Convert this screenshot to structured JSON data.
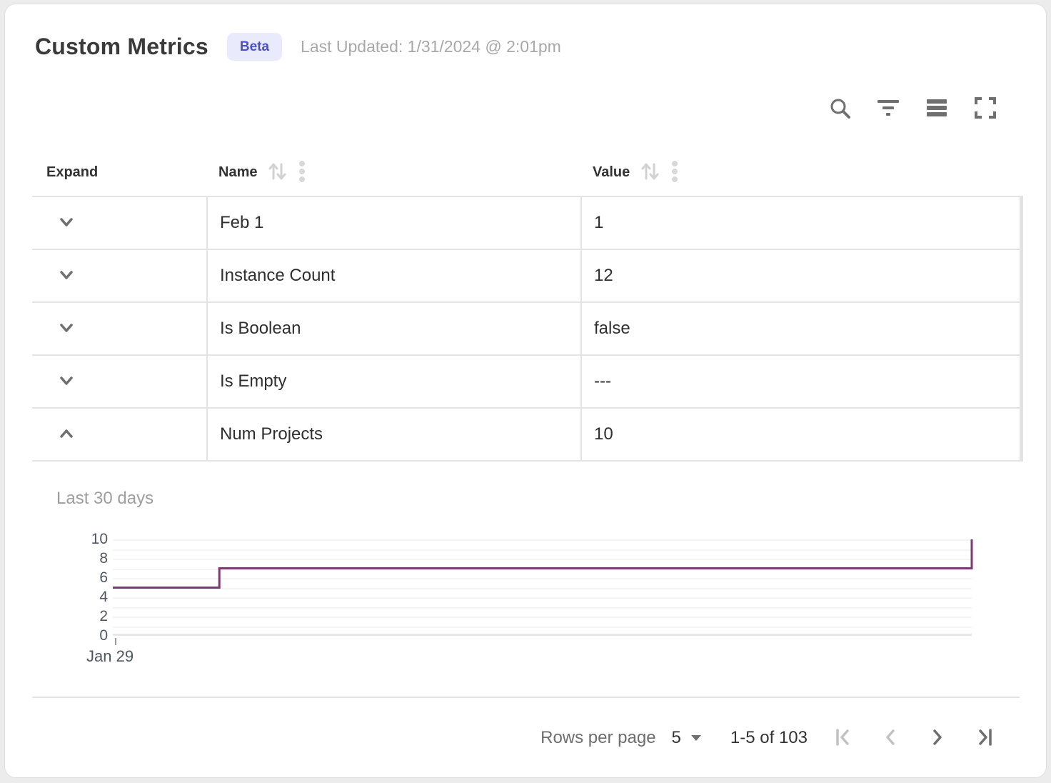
{
  "header": {
    "title": "Custom Metrics",
    "badge": "Beta",
    "last_updated": "Last Updated: 1/31/2024 @ 2:01pm"
  },
  "toolbar": {
    "icons": [
      "search",
      "filter",
      "density",
      "fullscreen"
    ]
  },
  "table": {
    "columns": [
      {
        "label": "Expand",
        "sortable": false
      },
      {
        "label": "Name",
        "sortable": true
      },
      {
        "label": "Value",
        "sortable": true
      }
    ],
    "rows": [
      {
        "name": "Feb 1",
        "value": "1",
        "expanded": false
      },
      {
        "name": "Instance Count",
        "value": "12",
        "expanded": false
      },
      {
        "name": "Is Boolean",
        "value": "false",
        "expanded": false
      },
      {
        "name": "Is Empty",
        "value": "---",
        "expanded": false
      },
      {
        "name": "Num Projects",
        "value": "10",
        "expanded": true
      }
    ]
  },
  "expanded_panel": {
    "label": "Last 30 days",
    "for_row": "Num Projects"
  },
  "chart_data": {
    "type": "line",
    "title": "Last 30 days",
    "series": [
      {
        "name": "Num Projects",
        "points": [
          {
            "x": 0,
            "y": 5
          },
          {
            "x": 0.124,
            "y": 5
          },
          {
            "x": 0.124,
            "y": 7
          },
          {
            "x": 1,
            "y": 7
          },
          {
            "x": 1,
            "y": 10
          }
        ]
      }
    ],
    "line_style": "step",
    "line_color": "#7b3a70",
    "y_ticks": [
      0,
      2,
      4,
      6,
      8,
      10
    ],
    "ylim": [
      0,
      10
    ],
    "grid": "horizontal-every-unit",
    "x_tick_labels": [
      "Jan 29"
    ],
    "legend": "none"
  },
  "pagination": {
    "rows_per_page_label": "Rows per page",
    "rows_per_page_value": "5",
    "range_label": "1-5 of 103",
    "first_page_disabled": true,
    "prev_page_disabled": true,
    "next_page_disabled": false,
    "last_page_disabled": false
  },
  "colors": {
    "accent_badge_bg": "#e9eafc",
    "accent_badge_text": "#4950c8",
    "chart_line": "#7b3a70",
    "border": "#e3e3e3",
    "icon_gray": "#6f6f6f",
    "icon_disabled": "#c2c2c2"
  }
}
